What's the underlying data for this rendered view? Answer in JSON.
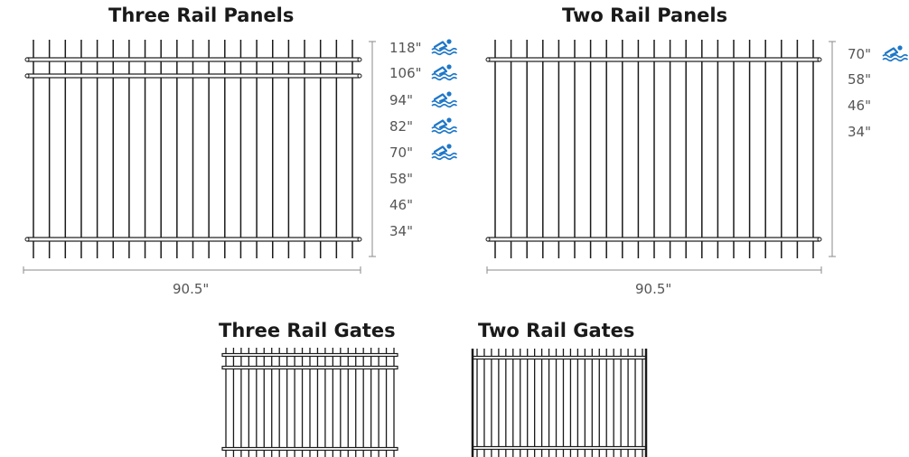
{
  "three_rail_panels": {
    "title": "Three Rail Panels",
    "heights": [
      {
        "label": "118\"",
        "pool_icon": true
      },
      {
        "label": "106\"",
        "pool_icon": true
      },
      {
        "label": "94\"",
        "pool_icon": true
      },
      {
        "label": "82\"",
        "pool_icon": true
      },
      {
        "label": "70\"",
        "pool_icon": true
      },
      {
        "label": "58\"",
        "pool_icon": false
      },
      {
        "label": "46\"",
        "pool_icon": false
      },
      {
        "label": "34\"",
        "pool_icon": false
      }
    ],
    "width": "90.5\""
  },
  "two_rail_panels": {
    "title": "Two Rail Panels",
    "heights": [
      {
        "label": "70\"",
        "pool_icon": true
      },
      {
        "label": "58\"",
        "pool_icon": false
      },
      {
        "label": "46\"",
        "pool_icon": false
      },
      {
        "label": "34\"",
        "pool_icon": false
      }
    ],
    "width": "90.5\""
  },
  "three_rail_gates": {
    "title": "Three Rail Gates"
  },
  "two_rail_gates": {
    "title": "Two Rail Gates"
  },
  "colors": {
    "line": "#1a1a1a",
    "dimension": "#8a8a8a",
    "pool_icon": "#1f77c8"
  },
  "icons": {
    "pool": "swimmer-waves-icon"
  }
}
